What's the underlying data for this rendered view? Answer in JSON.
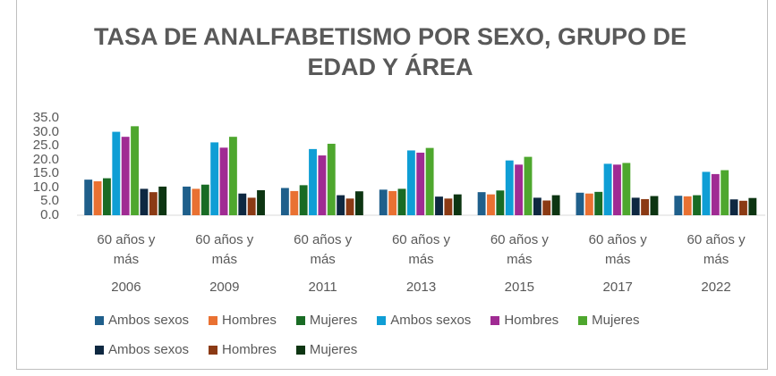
{
  "chart_data": {
    "type": "bar",
    "title": "TASA DE ANALFABETISMO POR SEXO, GRUPO DE EDAD Y ÁREA",
    "categories": [
      "2006",
      "2009",
      "2011",
      "2013",
      "2015",
      "2017",
      "2022"
    ],
    "subcategories": [
      "60 años y más",
      "60 años y más",
      "60 años y más",
      "60 años y más",
      "60 años y más",
      "60 años y más",
      "60 años y más"
    ],
    "series": [
      {
        "name": "Ambos sexos",
        "color": "#1f5f8b",
        "values": [
          12.8,
          10.3,
          9.8,
          9.2,
          8.3,
          8.1,
          7.0
        ]
      },
      {
        "name": "Hombres",
        "color": "#e97132",
        "values": [
          12.2,
          9.5,
          8.7,
          8.7,
          7.5,
          7.8,
          6.8
        ]
      },
      {
        "name": "Mujeres",
        "color": "#196b24",
        "values": [
          13.3,
          11.0,
          10.8,
          9.5,
          8.9,
          8.4,
          7.2
        ]
      },
      {
        "name": "Ambos sexos",
        "color": "#0f9ed5",
        "values": [
          30.0,
          26.2,
          23.8,
          23.3,
          19.7,
          18.5,
          15.6
        ]
      },
      {
        "name": "Hombres",
        "color": "#a02b93",
        "values": [
          28.2,
          24.3,
          21.5,
          22.5,
          18.2,
          18.2,
          14.8
        ]
      },
      {
        "name": "Mujeres",
        "color": "#4ea72e",
        "values": [
          32.0,
          28.2,
          25.7,
          24.2,
          21.0,
          18.8,
          16.2
        ]
      },
      {
        "name": "Ambos sexos",
        "color": "#0e2841",
        "values": [
          9.5,
          7.8,
          7.2,
          6.7,
          6.3,
          6.3,
          5.7
        ]
      },
      {
        "name": "Hombres",
        "color": "#8b3a14",
        "values": [
          8.3,
          6.3,
          6.0,
          6.0,
          5.3,
          5.8,
          5.2
        ]
      },
      {
        "name": "Mujeres",
        "color": "#0d3512",
        "values": [
          10.3,
          9.0,
          8.6,
          7.5,
          7.2,
          6.9,
          6.2
        ]
      }
    ],
    "ylim": [
      0,
      35
    ],
    "yticks": [
      {
        "value": 0,
        "label": "0.0"
      },
      {
        "value": 5,
        "label": "5.0"
      },
      {
        "value": 10,
        "label": "10.0"
      },
      {
        "value": 15,
        "label": "15.0"
      },
      {
        "value": 20,
        "label": "20.0"
      },
      {
        "value": 25,
        "label": "25.0"
      },
      {
        "value": 30,
        "label": "30.0"
      },
      {
        "value": 35,
        "label": "35.0"
      }
    ],
    "grid": false
  }
}
